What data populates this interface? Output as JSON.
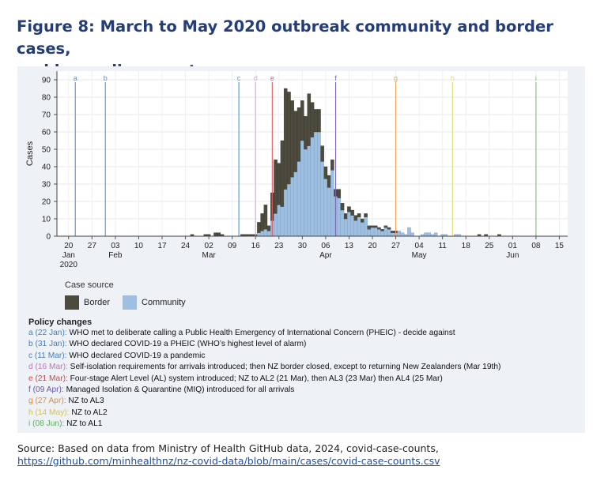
{
  "title_line1": "Figure 8: March to May 2020 outbreak community and border cases,",
  "title_line2": "and key policy events",
  "chart_data": {
    "type": "bar",
    "stacked": true,
    "ylabel": "Cases",
    "xlabel": "",
    "ylim": [
      0,
      95
    ],
    "y_ticks": [
      0,
      10,
      20,
      30,
      40,
      50,
      60,
      70,
      80,
      90
    ],
    "x_range": [
      "2020-01-17",
      "2020-06-18"
    ],
    "x_ticks": [
      {
        "date": "2020-01-20",
        "label": "20",
        "sub": "Jan",
        "sub2": "2020"
      },
      {
        "date": "2020-01-27",
        "label": "27",
        "sub": "",
        "sub2": ""
      },
      {
        "date": "2020-02-03",
        "label": "03",
        "sub": "Feb",
        "sub2": ""
      },
      {
        "date": "2020-02-10",
        "label": "10",
        "sub": "",
        "sub2": ""
      },
      {
        "date": "2020-02-17",
        "label": "17",
        "sub": "",
        "sub2": ""
      },
      {
        "date": "2020-02-24",
        "label": "24",
        "sub": "",
        "sub2": ""
      },
      {
        "date": "2020-03-02",
        "label": "02",
        "sub": "Mar",
        "sub2": ""
      },
      {
        "date": "2020-03-09",
        "label": "09",
        "sub": "",
        "sub2": ""
      },
      {
        "date": "2020-03-16",
        "label": "16",
        "sub": "",
        "sub2": ""
      },
      {
        "date": "2020-03-23",
        "label": "23",
        "sub": "",
        "sub2": ""
      },
      {
        "date": "2020-03-30",
        "label": "30",
        "sub": "",
        "sub2": ""
      },
      {
        "date": "2020-04-06",
        "label": "06",
        "sub": "Apr",
        "sub2": ""
      },
      {
        "date": "2020-04-13",
        "label": "13",
        "sub": "",
        "sub2": ""
      },
      {
        "date": "2020-04-20",
        "label": "20",
        "sub": "",
        "sub2": ""
      },
      {
        "date": "2020-04-27",
        "label": "27",
        "sub": "",
        "sub2": ""
      },
      {
        "date": "2020-05-04",
        "label": "04",
        "sub": "May",
        "sub2": ""
      },
      {
        "date": "2020-05-11",
        "label": "11",
        "sub": "",
        "sub2": ""
      },
      {
        "date": "2020-05-18",
        "label": "18",
        "sub": "",
        "sub2": ""
      },
      {
        "date": "2020-05-25",
        "label": "25",
        "sub": "",
        "sub2": ""
      },
      {
        "date": "2020-06-01",
        "label": "01",
        "sub": "Jun",
        "sub2": ""
      },
      {
        "date": "2020-06-08",
        "label": "08",
        "sub": "",
        "sub2": ""
      },
      {
        "date": "2020-06-15",
        "label": "15",
        "sub": "",
        "sub2": ""
      }
    ],
    "series": [
      {
        "name": "Border",
        "color": "#4d4a3e"
      },
      {
        "name": "Community",
        "color": "#9ebfe0"
      }
    ],
    "bars": [
      {
        "date": "2020-02-26",
        "border": 1,
        "community": 0
      },
      {
        "date": "2020-03-01",
        "border": 1,
        "community": 0
      },
      {
        "date": "2020-03-02",
        "border": 1,
        "community": 0
      },
      {
        "date": "2020-03-04",
        "border": 2,
        "community": 0
      },
      {
        "date": "2020-03-05",
        "border": 2,
        "community": 0
      },
      {
        "date": "2020-03-06",
        "border": 1,
        "community": 0
      },
      {
        "date": "2020-03-12",
        "border": 1,
        "community": 0
      },
      {
        "date": "2020-03-13",
        "border": 1,
        "community": 0
      },
      {
        "date": "2020-03-14",
        "border": 1,
        "community": 0
      },
      {
        "date": "2020-03-15",
        "border": 1,
        "community": 0
      },
      {
        "date": "2020-03-16",
        "border": 1,
        "community": 0
      },
      {
        "date": "2020-03-17",
        "border": 6,
        "community": 2
      },
      {
        "date": "2020-03-18",
        "border": 10,
        "community": 3
      },
      {
        "date": "2020-03-19",
        "border": 14,
        "community": 4
      },
      {
        "date": "2020-03-20",
        "border": 3,
        "community": 3
      },
      {
        "date": "2020-03-21",
        "border": 16,
        "community": 9
      },
      {
        "date": "2020-03-22",
        "border": 31,
        "community": 13
      },
      {
        "date": "2020-03-23",
        "border": 24,
        "community": 18
      },
      {
        "date": "2020-03-24",
        "border": 38,
        "community": 17
      },
      {
        "date": "2020-03-25",
        "border": 58,
        "community": 27
      },
      {
        "date": "2020-03-26",
        "border": 53,
        "community": 30
      },
      {
        "date": "2020-03-27",
        "border": 44,
        "community": 34
      },
      {
        "date": "2020-03-28",
        "border": 35,
        "community": 37
      },
      {
        "date": "2020-03-29",
        "border": 31,
        "community": 43
      },
      {
        "date": "2020-03-30",
        "border": 23,
        "community": 55
      },
      {
        "date": "2020-03-31",
        "border": 19,
        "community": 50
      },
      {
        "date": "2020-04-01",
        "border": 30,
        "community": 52
      },
      {
        "date": "2020-04-02",
        "border": 20,
        "community": 57
      },
      {
        "date": "2020-04-03",
        "border": 13,
        "community": 60
      },
      {
        "date": "2020-04-04",
        "border": 13,
        "community": 60
      },
      {
        "date": "2020-04-05",
        "border": 9,
        "community": 43
      },
      {
        "date": "2020-04-06",
        "border": 7,
        "community": 33
      },
      {
        "date": "2020-04-07",
        "border": 7,
        "community": 28
      },
      {
        "date": "2020-04-08",
        "border": 6,
        "community": 38
      },
      {
        "date": "2020-04-09",
        "border": 4,
        "community": 23
      },
      {
        "date": "2020-04-10",
        "border": 5,
        "community": 22
      },
      {
        "date": "2020-04-11",
        "border": 4,
        "community": 15
      },
      {
        "date": "2020-04-12",
        "border": 3,
        "community": 10
      },
      {
        "date": "2020-04-13",
        "border": 3,
        "community": 14
      },
      {
        "date": "2020-04-14",
        "border": 3,
        "community": 12
      },
      {
        "date": "2020-04-15",
        "border": 3,
        "community": 9
      },
      {
        "date": "2020-04-16",
        "border": 2,
        "community": 11
      },
      {
        "date": "2020-04-17",
        "border": 2,
        "community": 8
      },
      {
        "date": "2020-04-18",
        "border": 2,
        "community": 11
      },
      {
        "date": "2020-04-19",
        "border": 2,
        "community": 4
      },
      {
        "date": "2020-04-20",
        "border": 1,
        "community": 5
      },
      {
        "date": "2020-04-21",
        "border": 1,
        "community": 5
      },
      {
        "date": "2020-04-22",
        "border": 1,
        "community": 4
      },
      {
        "date": "2020-04-23",
        "border": 1,
        "community": 3
      },
      {
        "date": "2020-04-24",
        "border": 1,
        "community": 5
      },
      {
        "date": "2020-04-25",
        "border": 1,
        "community": 4
      },
      {
        "date": "2020-04-26",
        "border": 1,
        "community": 2
      },
      {
        "date": "2020-04-27",
        "border": 1,
        "community": 2
      },
      {
        "date": "2020-04-28",
        "border": 0,
        "community": 3
      },
      {
        "date": "2020-04-29",
        "border": 0,
        "community": 2
      },
      {
        "date": "2020-04-30",
        "border": 0,
        "community": 1
      },
      {
        "date": "2020-05-01",
        "border": 0,
        "community": 5
      },
      {
        "date": "2020-05-02",
        "border": 0,
        "community": 2
      },
      {
        "date": "2020-05-05",
        "border": 0,
        "community": 1
      },
      {
        "date": "2020-05-06",
        "border": 0,
        "community": 2
      },
      {
        "date": "2020-05-07",
        "border": 0,
        "community": 2
      },
      {
        "date": "2020-05-08",
        "border": 0,
        "community": 1
      },
      {
        "date": "2020-05-09",
        "border": 0,
        "community": 2
      },
      {
        "date": "2020-05-11",
        "border": 0,
        "community": 1
      },
      {
        "date": "2020-05-12",
        "border": 0,
        "community": 1
      },
      {
        "date": "2020-05-15",
        "border": 0,
        "community": 1
      },
      {
        "date": "2020-05-16",
        "border": 0,
        "community": 1
      },
      {
        "date": "2020-05-22",
        "border": 1,
        "community": 0
      },
      {
        "date": "2020-05-24",
        "border": 1,
        "community": 0
      },
      {
        "date": "2020-05-28",
        "border": 1,
        "community": 0
      }
    ],
    "events": [
      {
        "letter": "a",
        "date": "2020-01-22",
        "color": "#5b8fc9"
      },
      {
        "letter": "b",
        "date": "2020-01-31",
        "color": "#5b8fc9"
      },
      {
        "letter": "c",
        "date": "2020-03-11",
        "color": "#5b8fc9"
      },
      {
        "letter": "d",
        "date": "2020-03-16",
        "color": "#d9a3d9"
      },
      {
        "letter": "e",
        "date": "2020-03-21",
        "color": "#e45b5b"
      },
      {
        "letter": "f",
        "date": "2020-04-09",
        "color": "#7a63b3"
      },
      {
        "letter": "g",
        "date": "2020-04-27",
        "color": "#f0a25a"
      },
      {
        "letter": "h",
        "date": "2020-05-14",
        "color": "#e8d670"
      },
      {
        "letter": "i",
        "date": "2020-06-08",
        "color": "#79bf79"
      }
    ]
  },
  "legend": {
    "title": "Case source",
    "border_label": "Border",
    "community_label": "Community"
  },
  "policy": {
    "title": "Policy changes",
    "items": [
      {
        "key": "a (22 Jan):",
        "text": " WHO met to deliberate calling a Public Health Emergency of International Concern (PHEIC) - decide against",
        "color": "#3f7fc4"
      },
      {
        "key": "b (31 Jan):",
        "text": " WHO declared COVID-19 a PHEIC (WHO’s highest level of alarm)",
        "color": "#3f7fc4"
      },
      {
        "key": "c (11 Mar):",
        "text": " WHO declared COVID-19 a pandemic",
        "color": "#3f7fc4"
      },
      {
        "key": "d (16 Mar):",
        "text": " Self-isolation requirements for arrivals introduced; then NZ border closed, except to returning New Zealanders (Mar 19th)",
        "color": "#b57ab5"
      },
      {
        "key": "e (21 Mar):",
        "text": " Four-stage Alert Level (AL) system introduced; NZ to AL2 (21 Mar), then AL3 (23 Mar) then AL4 (25 Mar)",
        "color": "#d9423e"
      },
      {
        "key": "f (09 Apr):",
        "text": " Managed Isolation & Quarantine (MIQ) introduced for all arrivals",
        "color": "#6b52a8"
      },
      {
        "key": "g (27 Apr):",
        "text": " NZ to AL3",
        "color": "#e8893c"
      },
      {
        "key": "h (14 May):",
        "text": " NZ to AL2",
        "color": "#d9c24a"
      },
      {
        "key": "i (08 Jun):",
        "text": " NZ to AL1",
        "color": "#5fae5f"
      }
    ]
  },
  "source": {
    "text": "Source: Based on data from Ministry of Health GitHub data, 2024, covid-case-counts,",
    "link": "https://github.com/minhealthnz/nz-covid-data/blob/main/cases/covid-case-counts.csv"
  }
}
